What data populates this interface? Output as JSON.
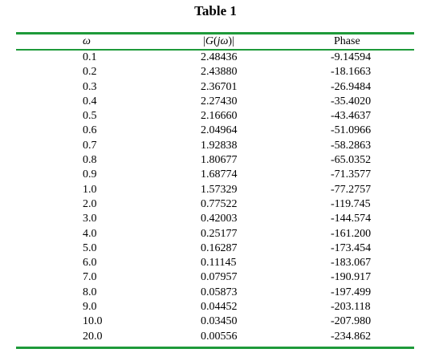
{
  "caption": "Table 1",
  "headers": {
    "omega": "ω",
    "magnitude_bar_left": "|",
    "magnitude_G": "G",
    "magnitude_open": "(",
    "magnitude_j": "j",
    "magnitude_omega": "ω",
    "magnitude_close": ")",
    "magnitude_bar_right": "|",
    "phase": "Phase"
  },
  "colors": {
    "rule": "#1e9a3a",
    "text": "#000000"
  },
  "rows": [
    {
      "omega": "0.1",
      "magnitude": "2.48436",
      "phase": "-9.14594"
    },
    {
      "omega": "0.2",
      "magnitude": "2.43880",
      "phase": "-18.1663"
    },
    {
      "omega": "0.3",
      "magnitude": "2.36701",
      "phase": "-26.9484"
    },
    {
      "omega": "0.4",
      "magnitude": "2.27430",
      "phase": "-35.4020"
    },
    {
      "omega": "0.5",
      "magnitude": "2.16660",
      "phase": "-43.4637"
    },
    {
      "omega": "0.6",
      "magnitude": "2.04964",
      "phase": "-51.0966"
    },
    {
      "omega": "0.7",
      "magnitude": "1.92838",
      "phase": "-58.2863"
    },
    {
      "omega": "0.8",
      "magnitude": "1.80677",
      "phase": "-65.0352"
    },
    {
      "omega": "0.9",
      "magnitude": "1.68774",
      "phase": "-71.3577"
    },
    {
      "omega": "1.0",
      "magnitude": "1.57329",
      "phase": "-77.2757"
    },
    {
      "omega": "2.0",
      "magnitude": "0.77522",
      "phase": "-119.745"
    },
    {
      "omega": "3.0",
      "magnitude": "0.42003",
      "phase": "-144.574"
    },
    {
      "omega": "4.0",
      "magnitude": "0.25177",
      "phase": "-161.200"
    },
    {
      "omega": "5.0",
      "magnitude": "0.16287",
      "phase": "-173.454"
    },
    {
      "omega": "6.0",
      "magnitude": "0.11145",
      "phase": "-183.067"
    },
    {
      "omega": "7.0",
      "magnitude": "0.07957",
      "phase": "-190.917"
    },
    {
      "omega": "8.0",
      "magnitude": "0.05873",
      "phase": "-197.499"
    },
    {
      "omega": "9.0",
      "magnitude": "0.04452",
      "phase": "-203.118"
    },
    {
      "omega": "10.0",
      "magnitude": "0.03450",
      "phase": "-207.980"
    },
    {
      "omega": "20.0",
      "magnitude": "0.00556",
      "phase": "-234.862"
    }
  ]
}
